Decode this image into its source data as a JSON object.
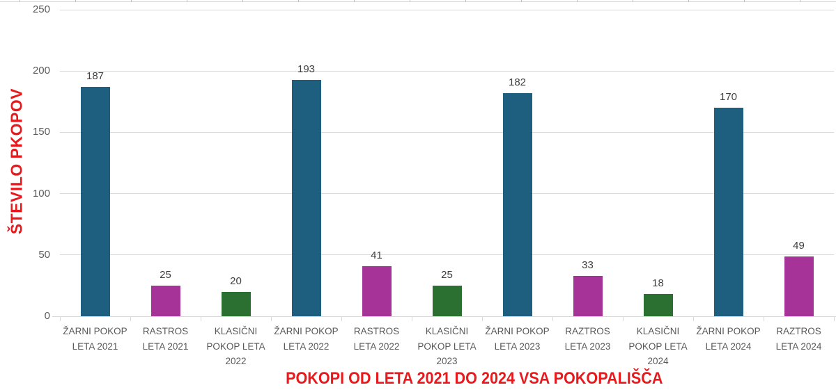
{
  "chart_data": {
    "type": "bar",
    "title": "POKOPI OD LETA 2021 DO 2024 VSA POKOPALIŠČA",
    "ylabel": "ŠTEVILO PKOPOV",
    "xlabel": "",
    "categories": [
      "ŽARNI POKOP LETA 2021",
      "RASTROS LETA 2021",
      "KLASIČNI POKOP LETA 2022",
      "ŽARNI POKOP LETA 2022",
      "RASTROS LETA 2022",
      "KLASIČNI POKOP LETA 2023",
      "ŽARNI POKOP LETA 2023",
      "RAZTROS LETA 2023",
      "KLASIČNI POKOP LETA 2024",
      "ŽARNI POKOP LETA 2024",
      "RAZTROS LETA 2024"
    ],
    "values": [
      187,
      25,
      20,
      193,
      41,
      25,
      182,
      33,
      18,
      170,
      49
    ],
    "bar_colors": [
      "#1e5f80",
      "#a63397",
      "#2b7031",
      "#1e5f80",
      "#a63397",
      "#2b7031",
      "#1e5f80",
      "#a63397",
      "#2b7031",
      "#1e5f80",
      "#a63397"
    ],
    "series_legend": {
      "zarni-pokop": "#1e5f80",
      "raztros": "#a63397",
      "klasicni-pokop": "#2b7031"
    },
    "ylim": [
      0,
      250
    ],
    "yticks": [
      0,
      50,
      100,
      150,
      200,
      250
    ],
    "grid": true,
    "legend_position": "none"
  },
  "colors": {
    "accent_red": "#e8191c",
    "gridline": "#d9d9d9",
    "tick_label": "#595959",
    "value_label": "#404040"
  }
}
